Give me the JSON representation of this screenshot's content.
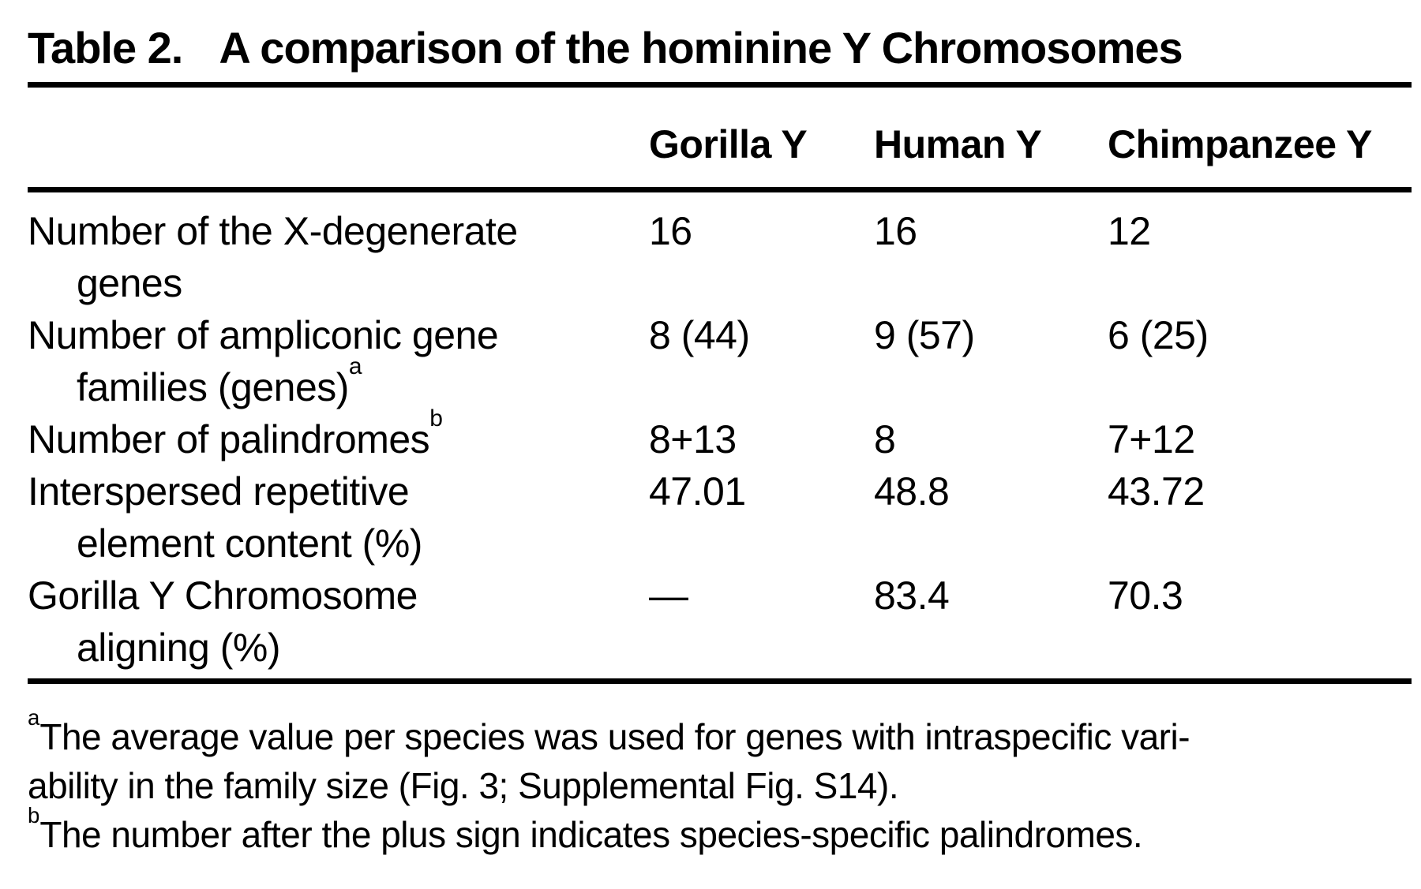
{
  "title": {
    "label": "Table 2.",
    "text": "A comparison of the hominine Y Chromosomes"
  },
  "table": {
    "columns": [
      "Gorilla Y",
      "Human Y",
      "Chimpanzee Y"
    ],
    "rows": [
      {
        "label_line1": "Number of the X-degenerate",
        "label_line2": "genes",
        "gorilla": "16",
        "human": "16",
        "chimpanzee": "12"
      },
      {
        "label_line1": "Number of ampliconic gene",
        "label_line2": "families (genes)",
        "label_sup2": "a",
        "gorilla": "8 (44)",
        "human": "9 (57)",
        "chimpanzee": "6 (25)"
      },
      {
        "label_line1": "Number of palindromes",
        "label_sup1": "b",
        "gorilla": "8+13",
        "human": "8",
        "chimpanzee": "7+12"
      },
      {
        "label_line1": "Interspersed repetitive",
        "label_line2": "element content (%)",
        "gorilla": "47.01",
        "human": "48.8",
        "chimpanzee": "43.72"
      },
      {
        "label_line1": "Gorilla Y Chromosome",
        "label_line2": "aligning (%)",
        "gorilla": "—",
        "human": "83.4",
        "chimpanzee": "70.3"
      }
    ]
  },
  "footnotes": [
    {
      "marker": "a",
      "line1": "The average value per species was used for genes with intraspecific vari-",
      "line2": "ability in the family size (Fig. 3; Supplemental Fig. S14)."
    },
    {
      "marker": "b",
      "line1": "The number after the plus sign indicates species-specific palindromes."
    }
  ]
}
